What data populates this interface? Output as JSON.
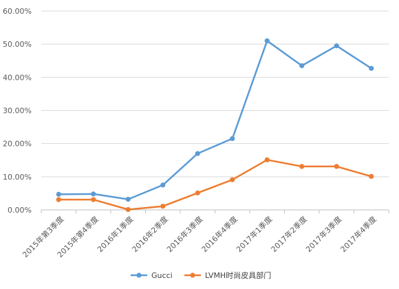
{
  "chart_data": {
    "type": "line",
    "categories": [
      "2015年第3季度",
      "2015年第4季度",
      "2016年1季度",
      "2016年2季度",
      "2016年3季度",
      "2016年4季度",
      "2017年1季度",
      "2017年2季度",
      "2017年3季度",
      "2017年4季度"
    ],
    "series": [
      {
        "name": "Gucci",
        "color": "#5B9BD5",
        "values": [
          4.7,
          4.8,
          3.2,
          7.5,
          17.0,
          21.5,
          51.0,
          43.5,
          49.5,
          42.7
        ]
      },
      {
        "name": "LVMH时尚皮具部门",
        "color": "#ED7D31",
        "values": [
          3.1,
          3.1,
          0.1,
          1.1,
          5.1,
          9.1,
          15.1,
          13.1,
          13.1,
          10.1
        ]
      }
    ],
    "ylim": [
      0,
      60
    ],
    "yticks": [
      "0.00%",
      "10.00%",
      "20.00%",
      "30.00%",
      "40.00%",
      "50.00%",
      "60.00%"
    ],
    "grid": true,
    "legend_position": "bottom",
    "title": "",
    "xlabel": "",
    "ylabel": ""
  }
}
